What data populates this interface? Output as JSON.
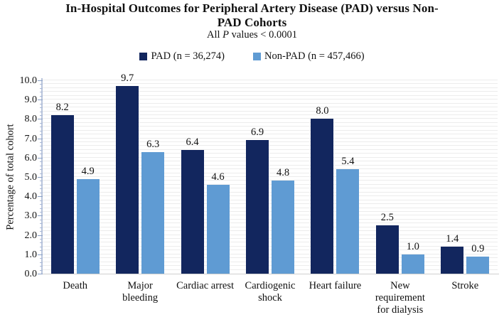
{
  "title": {
    "line1": "In-Hospital Outcomes for Peripheral Artery Disease (PAD) versus Non-",
    "line2": "PAD Cohorts",
    "full": "In-Hospital Outcomes for Peripheral Artery Disease (PAD) versus Non-PAD Cohorts"
  },
  "subtitle": {
    "prefix": "All ",
    "italic": "P",
    "suffix": " values < 0.0001"
  },
  "colors": {
    "pad": "#12265E",
    "non_pad": "#5F9BD3",
    "gridline": "#ececec",
    "y_axis_line": "#b9c5dc",
    "tick": "#8ba1c7",
    "baseline": "#cfcfcf",
    "text": "#111111",
    "background": "#ffffff"
  },
  "chart_data": {
    "type": "bar",
    "title": "In-Hospital Outcomes for Peripheral Artery Disease (PAD) versus Non-PAD Cohorts",
    "subtitle": "All P values < 0.0001",
    "categories": [
      "Death",
      "Major bleeding",
      "Cardiac arrest",
      "Cardiogenic shock",
      "Heart failure",
      "New requirement for dialysis",
      "Stroke"
    ],
    "category_lines": [
      [
        "Death"
      ],
      [
        "Major",
        "bleeding"
      ],
      [
        "Cardiac arrest"
      ],
      [
        "Cardiogenic",
        "shock"
      ],
      [
        "Heart failure"
      ],
      [
        "New",
        "requirement",
        "for dialysis"
      ],
      [
        "Stroke"
      ]
    ],
    "series": [
      {
        "name": "PAD (n = 36,274)",
        "color": "#12265E",
        "values": [
          8.2,
          9.7,
          6.4,
          6.9,
          8.0,
          2.5,
          1.4
        ]
      },
      {
        "name": "Non-PAD (n = 457,466)",
        "color": "#5F9BD3",
        "values": [
          4.9,
          6.3,
          4.6,
          4.8,
          5.4,
          1.0,
          0.9
        ]
      }
    ],
    "xlabel": "",
    "ylabel": "Percentage of total cohort",
    "ylim": [
      0,
      10
    ],
    "ytick_step": 1.0,
    "ytick_labels": [
      "0.0",
      "1.0",
      "2.0",
      "3.0",
      "4.0",
      "5.0",
      "6.0",
      "7.0",
      "8.0",
      "9.0",
      "10.0"
    ],
    "minor_tick_step": 0.2,
    "minor_grid_step": 0.2,
    "grid": true,
    "data_labels": true,
    "legend_position": "top"
  }
}
